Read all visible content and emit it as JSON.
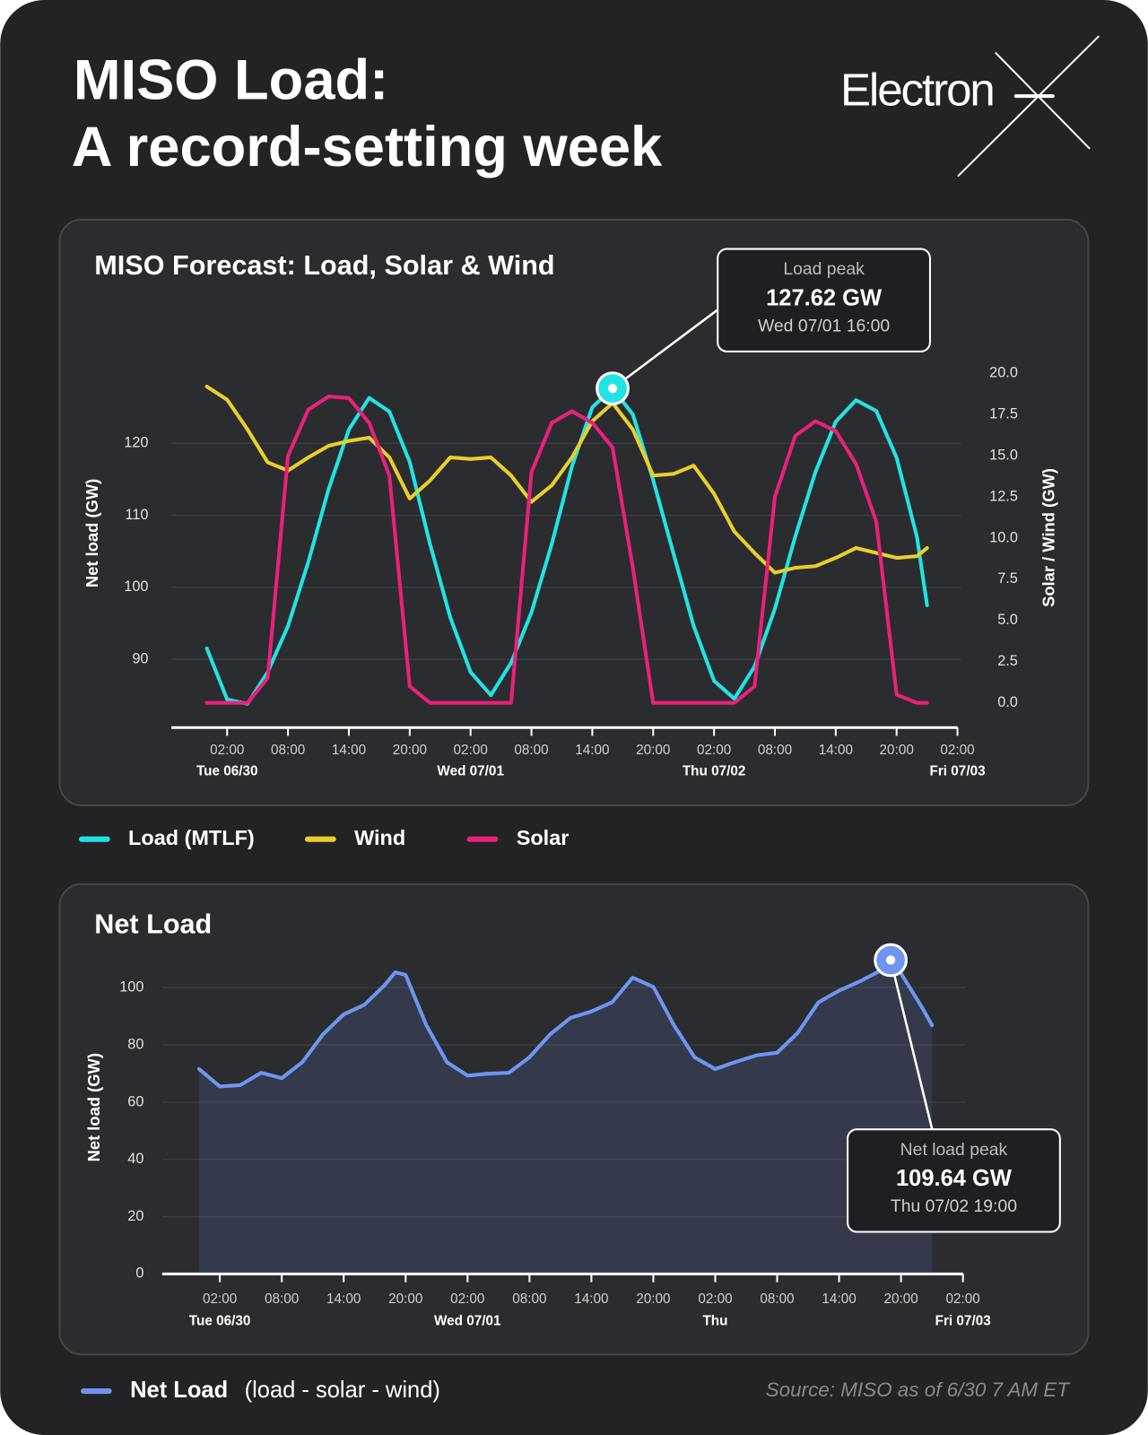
{
  "header": {
    "title": [
      "MISO Load:",
      "A record-setting week"
    ],
    "logo": "Electron"
  },
  "source": "Source: MISO as of 6/30 7 AM ET",
  "chart_data": [
    {
      "type": "line",
      "title": "MISO Forecast: Load, Solar & Wind",
      "y_label": "Net load (GW)",
      "y2_label": "Solar / Wind (GW)",
      "xlim": [
        "06/30 02:00",
        "07/03 02:00"
      ],
      "xticks": [
        {
          "value": "06/30 02:00",
          "label": "02:00"
        },
        {
          "value": "06/30 08:00",
          "label": "08:00"
        },
        {
          "value": "06/30 14:00",
          "label": "14:00"
        },
        {
          "value": "06/30 20:00",
          "label": "20:00"
        },
        {
          "value": "07/01 02:00",
          "label": "02:00"
        },
        {
          "value": "07/01 08:00",
          "label": "08:00"
        },
        {
          "value": "07/01 14:00",
          "label": "14:00"
        },
        {
          "value": "07/01 20:00",
          "label": "20:00"
        },
        {
          "value": "07/02 02:00",
          "label": "02:00"
        },
        {
          "value": "07/02 08:00",
          "label": "08:00"
        },
        {
          "value": "07/02 14:00",
          "label": "14:00"
        },
        {
          "value": "07/02 20:00",
          "label": "20:00"
        },
        {
          "value": "07/03 02:00",
          "label": "02:00"
        }
      ],
      "day_labels": [
        {
          "value": "06/30 02:00",
          "label": "Tue 06/30"
        },
        {
          "value": "07/01 02:00",
          "label": "Wed 07/01"
        },
        {
          "value": "07/02 02:00",
          "label": "Thu 07/02"
        },
        {
          "value": "07/03 02:00",
          "label": "Fri 07/03"
        }
      ],
      "ylim": [
        80.5,
        132
      ],
      "yticks": [
        90,
        100,
        110,
        120
      ],
      "y2lim": [
        -1.5,
        21
      ],
      "y2ticks": [
        {
          "value": 0,
          "label": "0.0"
        },
        2.5,
        {
          "value": 5,
          "label": "5.0"
        },
        7.5,
        {
          "value": 10,
          "label": "10.0"
        },
        12.5,
        {
          "value": 15,
          "label": "15.0"
        },
        17.5,
        {
          "value": 20,
          "label": "20.0"
        }
      ],
      "grid": true,
      "x": [
        "06/30 00:00",
        "06/30 02:00",
        "06/30 04:00",
        "06/30 06:00",
        "06/30 08:00",
        "06/30 10:00",
        "06/30 12:00",
        "06/30 14:00",
        "06/30 16:00",
        "06/30 18:00",
        "06/30 20:00",
        "06/30 22:00",
        "07/01 00:00",
        "07/01 02:00",
        "07/01 04:00",
        "07/01 06:00",
        "07/01 08:00",
        "07/01 10:00",
        "07/01 12:00",
        "07/01 14:00",
        "07/01 16:00",
        "07/01 18:00",
        "07/01 20:00",
        "07/01 22:00",
        "07/02 00:00",
        "07/02 02:00",
        "07/02 04:00",
        "07/02 06:00",
        "07/02 08:00",
        "07/02 10:00",
        "07/02 12:00",
        "07/02 14:00",
        "07/02 16:00",
        "07/02 18:00",
        "07/02 20:00",
        "07/02 22:00",
        "07/02 23:00"
      ],
      "series": [
        {
          "name": "Load (MTLF)",
          "color": "#22e3e3",
          "values": [
            91.5,
            84.4,
            83.8,
            88.2,
            94.6,
            103.5,
            113.6,
            121.9,
            126.3,
            124.4,
            117.4,
            106,
            95.8,
            88.2,
            85,
            89.5,
            96.5,
            106,
            116.8,
            125,
            127.62,
            124,
            114.9,
            104.7,
            94.6,
            87,
            84.5,
            89,
            97,
            107,
            116,
            123,
            126,
            124.5,
            118,
            107,
            97.5
          ]
        },
        {
          "name": "Wind",
          "color": "#e8cf2a",
          "axis": "y2",
          "values": [
            19.2,
            18.4,
            16.6,
            14.6,
            14.1,
            14.9,
            15.6,
            15.9,
            16.1,
            14.9,
            12.4,
            13.5,
            14.9,
            14.8,
            14.9,
            13.8,
            12.2,
            13.2,
            14.9,
            17.1,
            18.2,
            16.6,
            13.8,
            13.9,
            14.4,
            12.7,
            10.4,
            9.1,
            7.9,
            8.2,
            8.3,
            8.8,
            9.4,
            9.1,
            8.8,
            8.9,
            9.4
          ]
        },
        {
          "name": "Solar",
          "color": "#e8217a",
          "axis": "y2",
          "values": [
            0,
            0,
            0,
            1.5,
            15,
            17.8,
            18.6,
            18.5,
            17,
            13.8,
            1,
            0,
            0,
            0,
            0,
            0,
            14,
            17,
            17.7,
            17,
            15.5,
            8.2,
            0,
            0,
            0,
            0,
            0,
            1,
            12.5,
            16.2,
            17.1,
            16.5,
            14.5,
            11,
            0.5,
            0,
            0
          ]
        }
      ],
      "annotation": {
        "series": 0,
        "title": "Load peak",
        "value": 127.62,
        "value_label": "127.62 GW",
        "x": "07/01 16:00",
        "x_label": "Wed 07/01 16:00"
      }
    },
    {
      "type": "area",
      "title": "Net Load",
      "y_label": "Net load (GW)",
      "xlim": [
        "06/30 02:00",
        "07/03 02:00"
      ],
      "xticks": [
        {
          "value": "06/30 02:00",
          "label": "02:00"
        },
        {
          "value": "06/30 08:00",
          "label": "08:00"
        },
        {
          "value": "06/30 14:00",
          "label": "14:00"
        },
        {
          "value": "06/30 20:00",
          "label": "20:00"
        },
        {
          "value": "07/01 02:00",
          "label": "02:00"
        },
        {
          "value": "07/01 08:00",
          "label": "08:00"
        },
        {
          "value": "07/01 14:00",
          "label": "14:00"
        },
        {
          "value": "07/01 20:00",
          "label": "20:00"
        },
        {
          "value": "07/02 02:00",
          "label": "02:00"
        },
        {
          "value": "07/02 08:00",
          "label": "08:00"
        },
        {
          "value": "07/02 14:00",
          "label": "14:00"
        },
        {
          "value": "07/02 20:00",
          "label": "20:00"
        },
        {
          "value": "07/03 02:00",
          "label": "02:00"
        }
      ],
      "day_labels": [
        {
          "value": "06/30 02:00",
          "label": "Tue 06/30"
        },
        {
          "value": "07/01 02:00",
          "label": "Wed 07/01"
        },
        {
          "value": "07/02 02:00",
          "label": "Thu"
        },
        {
          "value": "07/03 02:00",
          "label": "Fri 07/03"
        }
      ],
      "ylim": [
        0,
        110
      ],
      "yticks": [
        0,
        20,
        40,
        60,
        80,
        100
      ],
      "grid": true,
      "x": [
        "06/30 00:00",
        "06/30 02:00",
        "06/30 04:00",
        "06/30 06:00",
        "06/30 08:00",
        "06/30 10:00",
        "06/30 12:00",
        "06/30 14:00",
        "06/30 16:00",
        "06/30 18:00",
        "06/30 19:00",
        "06/30 20:00",
        "06/30 22:00",
        "07/01 00:00",
        "07/01 02:00",
        "07/01 04:00",
        "07/01 06:00",
        "07/01 08:00",
        "07/01 10:00",
        "07/01 12:00",
        "07/01 14:00",
        "07/01 16:00",
        "07/01 18:00",
        "07/01 20:00",
        "07/01 22:00",
        "07/02 00:00",
        "07/02 02:00",
        "07/02 04:00",
        "07/02 06:00",
        "07/02 08:00",
        "07/02 10:00",
        "07/02 12:00",
        "07/02 14:00",
        "07/02 16:00",
        "07/02 18:00",
        "07/02 19:00",
        "07/02 20:00",
        "07/02 22:00",
        "07/02 23:00"
      ],
      "series": [
        {
          "name": "Net Load",
          "color": "#6f95f0",
          "legend_note": "(load - solar - wind)",
          "values": [
            71.6,
            65.5,
            66,
            70.3,
            68.4,
            74,
            83.7,
            90.7,
            94,
            101,
            105.4,
            104.5,
            86.9,
            74,
            69.3,
            70,
            70.3,
            75.7,
            83.7,
            89.5,
            91.7,
            94.9,
            103.5,
            100.3,
            86.9,
            75.7,
            71.6,
            74.1,
            76.4,
            77.3,
            84.3,
            94.9,
            99,
            102.2,
            106,
            109.64,
            105,
            93.3,
            86.9
          ]
        }
      ],
      "annotation": {
        "series": 0,
        "title": "Net load peak",
        "value": 109.64,
        "value_label": "109.64 GW",
        "x": "07/02 19:00",
        "x_label": "Thu 07/02 19:00"
      }
    }
  ]
}
